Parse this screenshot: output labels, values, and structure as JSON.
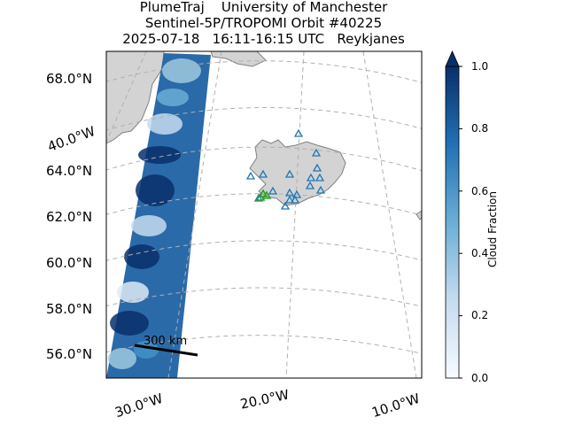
{
  "title": {
    "line1": "PlumeTraj    University of Manchester",
    "line2": "Sentinel-5P/TROPOMI Orbit #40225",
    "line3": "2025-07-18   16:11-16:15 UTC   Reykjanes"
  },
  "lat_labels": [
    "68.0°N",
    "64.0°N",
    "62.0°N",
    "60.0°N",
    "58.0°N",
    "56.0°N"
  ],
  "lon_labels": [
    "40.0°W",
    "30.0°W",
    "20.0°W",
    "10.0°W"
  ],
  "scale_bar": "300 km",
  "colorbar": {
    "label": "Cloud Fraction",
    "ticks": [
      "1.0",
      "0.8",
      "0.6",
      "0.4",
      "0.2",
      "0.0"
    ],
    "color_low": "#f7fbff",
    "color_high": "#08306b"
  },
  "colors": {
    "land": "#d3d3d3",
    "coast": "#808080",
    "volcano_marker": "#1f77b4",
    "source_marker": "#2ca02c"
  }
}
